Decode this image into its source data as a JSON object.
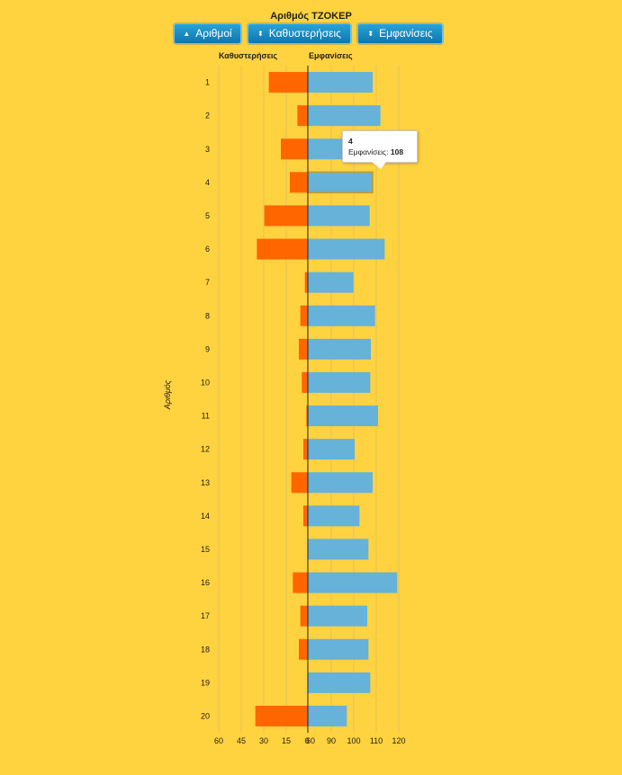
{
  "title": "Αριθμός ΤΖΟΚΕΡ",
  "buttons": [
    {
      "label": "Αριθμοί",
      "icon": "▲"
    },
    {
      "label": "Καθυστερήσεις",
      "icon": "⬍"
    },
    {
      "label": "Εμφανίσεις",
      "icon": "⬍"
    }
  ],
  "left_header": "Καθυστερήσεις",
  "right_header": "Εμφανίσεις",
  "y_axis_label": "Αριθμός",
  "tooltip": {
    "title": "4",
    "label": "Εμφανίσεις:",
    "value": "108"
  },
  "colors": {
    "background": "#FFD23F",
    "delays": "#FF6600",
    "appearances": "#66B2D9",
    "button": "#1A8CC4"
  },
  "chart_data": {
    "type": "bar",
    "categories": [
      "1",
      "2",
      "3",
      "4",
      "5",
      "6",
      "7",
      "8",
      "9",
      "10",
      "11",
      "12",
      "13",
      "14",
      "15",
      "16",
      "17",
      "18",
      "19",
      "20"
    ],
    "series": [
      {
        "name": "Καθυστερήσεις",
        "values": [
          26,
          7,
          18,
          12,
          29,
          34,
          2,
          5,
          6,
          4,
          1,
          3,
          11,
          3,
          0,
          10,
          5,
          6,
          0,
          35
        ]
      },
      {
        "name": "Εμφανίσεις",
        "values": [
          108,
          121,
          98,
          108,
          103,
          128,
          76,
          112,
          105,
          104,
          117,
          78,
          108,
          86,
          101,
          149,
          99,
          101,
          104,
          65
        ]
      }
    ],
    "left_axis": {
      "ticks": [
        "60",
        "45",
        "30",
        "15",
        "0"
      ],
      "range": [
        60,
        0
      ]
    },
    "right_axis": {
      "ticks": [
        "60",
        "90",
        "100",
        "110",
        "120"
      ],
      "values": [
        60,
        90,
        100,
        110,
        120
      ]
    },
    "grid": true
  }
}
